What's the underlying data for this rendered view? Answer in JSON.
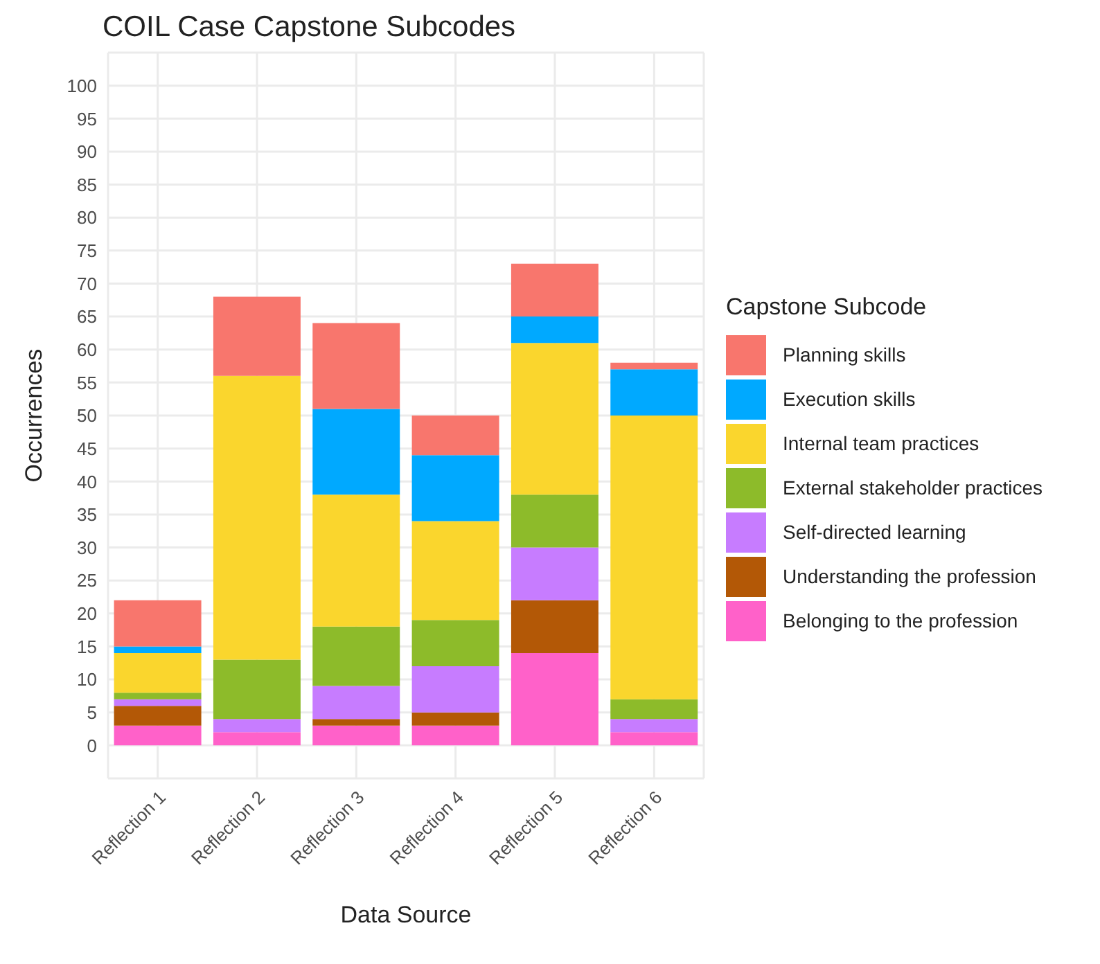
{
  "chart_data": {
    "type": "bar",
    "title": "COIL Case Capstone Subcodes",
    "xlabel": "Data Source",
    "ylabel": "Occurrences",
    "legend_title": "Capstone Subcode",
    "stacked": true,
    "grid": true,
    "legend": "right",
    "categories": [
      "Reflection 1",
      "Reflection 2",
      "Reflection 3",
      "Reflection 4",
      "Reflection 5",
      "Reflection 6"
    ],
    "ylim": [
      -5,
      105
    ],
    "yticks": [
      0,
      5,
      10,
      15,
      20,
      25,
      30,
      35,
      40,
      45,
      50,
      55,
      60,
      65,
      70,
      75,
      80,
      85,
      90,
      95,
      100
    ],
    "series": [
      {
        "name": "Belonging to the profession",
        "color": "#ff61c9",
        "values": [
          3,
          2,
          3,
          3,
          14,
          2
        ]
      },
      {
        "name": "Understanding the profession",
        "color": "#b35806",
        "values": [
          3,
          0,
          1,
          2,
          8,
          0
        ]
      },
      {
        "name": "Self-directed learning",
        "color": "#c77cff",
        "values": [
          1,
          2,
          5,
          7,
          8,
          2
        ]
      },
      {
        "name": "External stakeholder practices",
        "color": "#8dbb2a",
        "values": [
          1,
          9,
          9,
          7,
          8,
          3
        ]
      },
      {
        "name": "Internal team practices",
        "color": "#fad62d",
        "values": [
          6,
          43,
          20,
          15,
          23,
          43
        ]
      },
      {
        "name": "Execution skills",
        "color": "#00a9ff",
        "values": [
          1,
          0,
          13,
          10,
          4,
          7
        ]
      },
      {
        "name": "Planning skills",
        "color": "#f8766d",
        "values": [
          7,
          12,
          13,
          6,
          8,
          1
        ]
      }
    ]
  }
}
